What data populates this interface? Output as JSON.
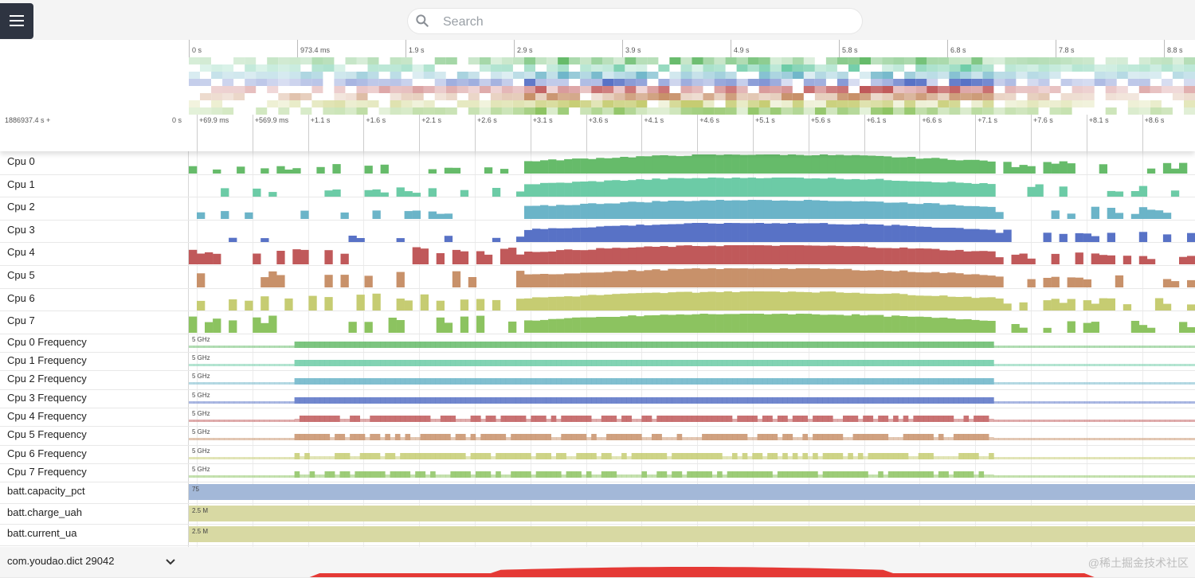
{
  "topbar": {
    "menu_icon": "hamburger-menu-icon",
    "search_icon": "search-icon",
    "search_placeholder": "Search"
  },
  "overview": {
    "ticks": [
      "0 s",
      "973.4 ms",
      "1.9 s",
      "2.9 s",
      "3.9 s",
      "4.9 s",
      "5.8 s",
      "6.8 s",
      "7.8 s",
      "8.8 s"
    ],
    "time_offset": "1886937.4 s +",
    "zero_label": "0 s",
    "relative_ticks": [
      "+69.9 ms",
      "+569.9 ms",
      "+1.1 s",
      "+1.6 s",
      "+2.1 s",
      "+2.6 s",
      "+3.1 s",
      "+3.6 s",
      "+4.1 s",
      "+4.6 s",
      "+5.1 s",
      "+5.6 s",
      "+6.1 s",
      "+6.6 s",
      "+7.1 s",
      "+7.6 s",
      "+8.1 s",
      "+8.6 s"
    ]
  },
  "tracks": {
    "cpu": [
      {
        "label": "Cpu 0",
        "color": "#66bb6a"
      },
      {
        "label": "Cpu 1",
        "color": "#6ccba6"
      },
      {
        "label": "Cpu 2",
        "color": "#6bb4c8"
      },
      {
        "label": "Cpu 3",
        "color": "#5872c6"
      },
      {
        "label": "Cpu 4",
        "color": "#c0595a"
      },
      {
        "label": "Cpu 5",
        "color": "#c8916a"
      },
      {
        "label": "Cpu 6",
        "color": "#c6cc72"
      },
      {
        "label": "Cpu 7",
        "color": "#8cc360"
      }
    ],
    "freq": [
      {
        "label": "Cpu 0 Frequency",
        "scale": "5 GHz",
        "color": "#66bb6a"
      },
      {
        "label": "Cpu 1 Frequency",
        "scale": "5 GHz",
        "color": "#6ccba6"
      },
      {
        "label": "Cpu 2 Frequency",
        "scale": "5 GHz",
        "color": "#6bb4c8"
      },
      {
        "label": "Cpu 3 Frequency",
        "scale": "5 GHz",
        "color": "#5872c6"
      },
      {
        "label": "Cpu 4 Frequency",
        "scale": "5 GHz",
        "color": "#c0595a"
      },
      {
        "label": "Cpu 5 Frequency",
        "scale": "5 GHz",
        "color": "#c8916a"
      },
      {
        "label": "Cpu 6 Frequency",
        "scale": "5 GHz",
        "color": "#c6cc72"
      },
      {
        "label": "Cpu 7 Frequency",
        "scale": "5 GHz",
        "color": "#8cc360"
      }
    ],
    "counters": [
      {
        "label": "batt.capacity_pct",
        "scale": "75",
        "color": "#a3b8d8"
      },
      {
        "label": "batt.charge_uah",
        "scale": "2.5 M",
        "color": "#d8d9a3"
      },
      {
        "label": "batt.current_ua",
        "scale": "2.5 M",
        "color": "#d8d9a3"
      }
    ],
    "process": {
      "label": "com.youdao.dict 29042",
      "expand_icon": "chevron-down-icon",
      "color": "#e53935"
    }
  },
  "watermark": "@稀土掘金技术社区"
}
